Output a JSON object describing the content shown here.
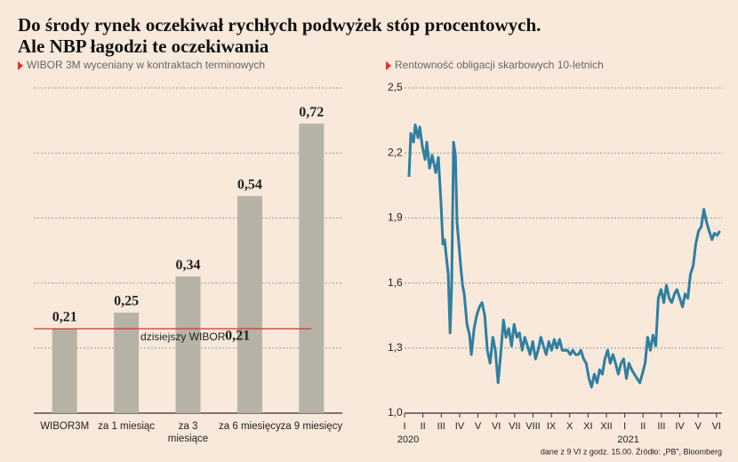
{
  "header": {
    "title": [
      "Do środy rynek oczekiwał rychłych podwyżek stóp procentowych.",
      "Ale NBP łagodzi te oczekiwania"
    ]
  },
  "chart_data": [
    {
      "type": "bar",
      "subtitle": "WIBOR 3M wyceniany w kontraktach terminowych",
      "categories": [
        "WIBOR3M",
        "za 1 miesiąc",
        "za 3 miesiące",
        "za 6 miesięcy",
        "za 9 miesięcy"
      ],
      "values": [
        0.21,
        0.25,
        0.34,
        0.54,
        0.72
      ],
      "value_labels": [
        "0,21",
        "0,25",
        "0,34",
        "0,54",
        "0,72"
      ],
      "color": "#b6b3a6",
      "ylim": [
        0,
        0.8
      ],
      "reference_line": {
        "value": 0.21,
        "label": "dzisiejszy WIBOR",
        "value_label": "0,21",
        "color": "#e0302a"
      }
    },
    {
      "type": "line",
      "subtitle": "Rentowność obligacji skarbowych 10-letnich",
      "color": "#2f7fa0",
      "grid": true,
      "xlim": [
        0,
        17.3
      ],
      "ylim": [
        1.0,
        2.5
      ],
      "yticks": [
        {
          "value": 1.0,
          "label": "1,0"
        },
        {
          "value": 1.3,
          "label": "1,3"
        },
        {
          "value": 1.6,
          "label": "1,6"
        },
        {
          "value": 1.9,
          "label": "1,9"
        },
        {
          "value": 2.2,
          "label": "2,2"
        },
        {
          "value": 2.5,
          "label": "2,5"
        }
      ],
      "xticks": [
        {
          "value": 0,
          "label": "I"
        },
        {
          "value": 1,
          "label": "II"
        },
        {
          "value": 2,
          "label": "III"
        },
        {
          "value": 3,
          "label": "IV"
        },
        {
          "value": 4,
          "label": "V"
        },
        {
          "value": 5,
          "label": "VI"
        },
        {
          "value": 6,
          "label": "VII"
        },
        {
          "value": 7,
          "label": "VIII"
        },
        {
          "value": 8,
          "label": "IX"
        },
        {
          "value": 9,
          "label": "X"
        },
        {
          "value": 10,
          "label": "XI"
        },
        {
          "value": 11,
          "label": "XII"
        },
        {
          "value": 12,
          "label": "I"
        },
        {
          "value": 13,
          "label": "II"
        },
        {
          "value": 14,
          "label": "III"
        },
        {
          "value": 15,
          "label": "IV"
        },
        {
          "value": 16,
          "label": "V"
        },
        {
          "value": 17,
          "label": "VI"
        }
      ],
      "year_labels": [
        {
          "value": 0,
          "label": "2020"
        },
        {
          "value": 12,
          "label": "2021"
        }
      ],
      "x": [
        0.24,
        0.34,
        0.49,
        0.58,
        0.73,
        0.83,
        0.97,
        1.12,
        1.21,
        1.36,
        1.5,
        1.7,
        1.84,
        1.99,
        2.09,
        2.18,
        2.28,
        2.38,
        2.48,
        2.57,
        2.67,
        2.77,
        2.86,
        2.96,
        3.06,
        3.16,
        3.25,
        3.4,
        3.54,
        3.64,
        3.79,
        3.93,
        4.08,
        4.22,
        4.37,
        4.51,
        4.66,
        4.81,
        4.95,
        5.1,
        5.24,
        5.39,
        5.53,
        5.68,
        5.83,
        5.97,
        6.12,
        6.26,
        6.41,
        6.55,
        6.7,
        6.84,
        6.99,
        7.14,
        7.28,
        7.43,
        7.57,
        7.72,
        7.86,
        8.01,
        8.16,
        8.3,
        8.45,
        8.59,
        8.74,
        8.88,
        9.03,
        9.17,
        9.32,
        9.47,
        9.61,
        9.76,
        9.9,
        10.05,
        10.19,
        10.34,
        10.49,
        10.63,
        10.78,
        10.92,
        11.07,
        11.21,
        11.36,
        11.5,
        11.65,
        11.8,
        11.94,
        12.09,
        12.23,
        12.38,
        12.52,
        12.67,
        12.82,
        12.96,
        13.11,
        13.25,
        13.4,
        13.54,
        13.69,
        13.83,
        13.98,
        14.13,
        14.27,
        14.42,
        14.56,
        14.71,
        14.85,
        15.0,
        15.15,
        15.29,
        15.44,
        15.58,
        15.73,
        15.87,
        16.02,
        16.17,
        16.31,
        16.46,
        16.6,
        16.75,
        16.89,
        17.04,
        17.18
      ],
      "values": [
        2.09,
        2.29,
        2.25,
        2.33,
        2.27,
        2.32,
        2.23,
        2.17,
        2.25,
        2.13,
        2.19,
        2.11,
        2.18,
        1.96,
        1.78,
        1.8,
        1.72,
        1.64,
        1.37,
        1.59,
        2.25,
        2.19,
        1.88,
        1.78,
        1.68,
        1.59,
        1.55,
        1.41,
        1.36,
        1.27,
        1.39,
        1.45,
        1.49,
        1.51,
        1.45,
        1.29,
        1.23,
        1.35,
        1.29,
        1.14,
        1.27,
        1.43,
        1.35,
        1.39,
        1.31,
        1.41,
        1.35,
        1.37,
        1.29,
        1.35,
        1.31,
        1.27,
        1.33,
        1.25,
        1.29,
        1.35,
        1.31,
        1.27,
        1.33,
        1.29,
        1.34,
        1.3,
        1.34,
        1.29,
        1.29,
        1.29,
        1.27,
        1.29,
        1.27,
        1.27,
        1.29,
        1.25,
        1.23,
        1.16,
        1.12,
        1.18,
        1.14,
        1.2,
        1.18,
        1.25,
        1.29,
        1.23,
        1.27,
        1.23,
        1.18,
        1.23,
        1.25,
        1.16,
        1.23,
        1.2,
        1.18,
        1.16,
        1.14,
        1.18,
        1.23,
        1.35,
        1.29,
        1.36,
        1.31,
        1.53,
        1.57,
        1.51,
        1.59,
        1.53,
        1.51,
        1.55,
        1.57,
        1.53,
        1.49,
        1.55,
        1.53,
        1.64,
        1.68,
        1.78,
        1.84,
        1.86,
        1.94,
        1.88,
        1.84,
        1.8,
        1.83,
        1.82,
        1.84
      ]
    }
  ],
  "footnote": "dane z 9 VI z godz. 15.00. Źródło: „PB”, Bloomberg"
}
